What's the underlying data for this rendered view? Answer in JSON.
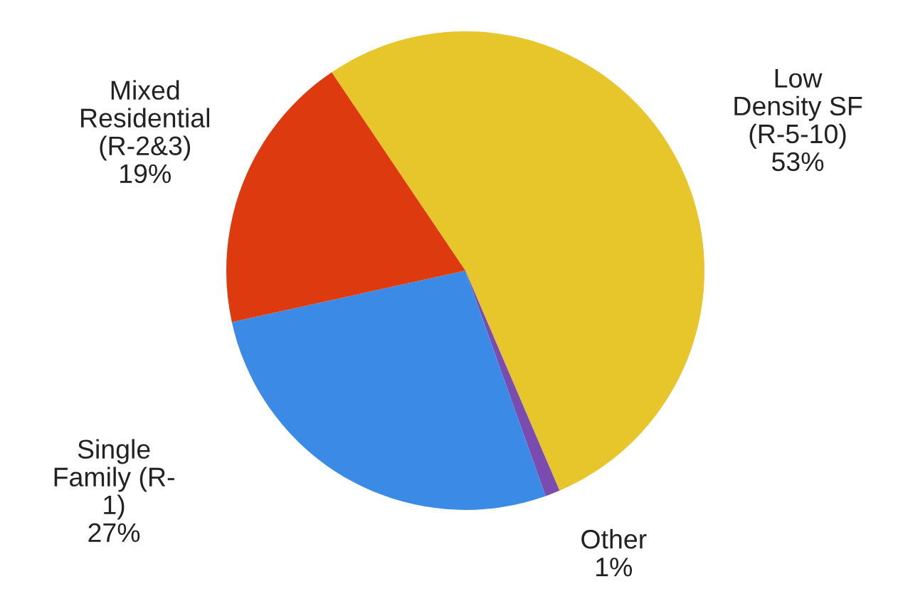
{
  "chart_data": {
    "type": "pie",
    "categories": [
      "Low\nDensity SF\n(R-5-10)",
      "Other",
      "Single\nFamily (R-\n1)",
      "Mixed\nResidential\n(R-2&3)"
    ],
    "values": [
      53,
      1,
      27,
      19
    ],
    "value_labels": [
      "53%",
      "1%",
      "27%",
      "19%"
    ],
    "colors": [
      "#e6c62a",
      "#7b4cb0",
      "#3a8ae6",
      "#de3a10"
    ],
    "legend": false
  }
}
